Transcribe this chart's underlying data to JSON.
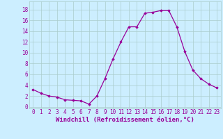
{
  "x": [
    0,
    1,
    2,
    3,
    4,
    5,
    6,
    7,
    8,
    9,
    10,
    11,
    12,
    13,
    14,
    15,
    16,
    17,
    18,
    19,
    20,
    21,
    22,
    23
  ],
  "y": [
    3.2,
    2.5,
    2.0,
    1.8,
    1.3,
    1.2,
    1.1,
    0.5,
    2.0,
    5.2,
    8.8,
    12.0,
    14.8,
    14.8,
    17.3,
    17.5,
    17.8,
    17.8,
    14.8,
    10.2,
    6.8,
    5.2,
    4.2,
    3.5
  ],
  "line_color": "#990099",
  "marker": "D",
  "markersize": 1.8,
  "linewidth": 0.9,
  "bg_color": "#cceeff",
  "grid_color": "#aacccc",
  "xlabel": "Windchill (Refroidissement éolien,°C)",
  "xlabel_fontsize": 6.5,
  "ylabel_ticks": [
    0,
    2,
    4,
    6,
    8,
    10,
    12,
    14,
    16,
    18
  ],
  "xticks": [
    0,
    1,
    2,
    3,
    4,
    5,
    6,
    7,
    8,
    9,
    10,
    11,
    12,
    13,
    14,
    15,
    16,
    17,
    18,
    19,
    20,
    21,
    22,
    23
  ],
  "xlim": [
    -0.5,
    23.5
  ],
  "ylim": [
    -0.3,
    19.5
  ],
  "tick_fontsize": 5.5
}
